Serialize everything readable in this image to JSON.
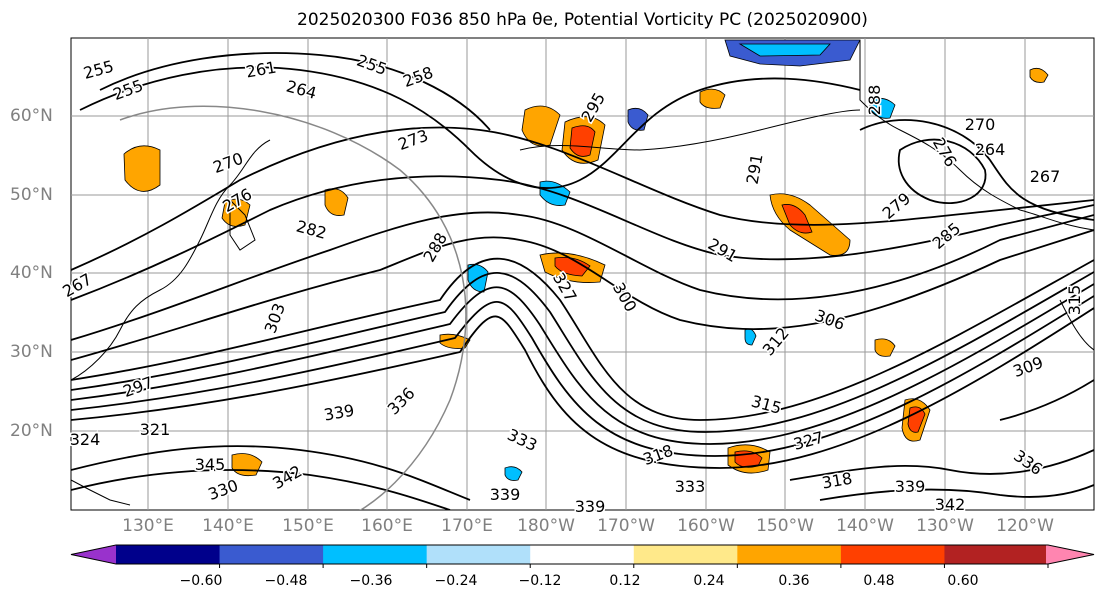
{
  "title": "2025020300 F036 850 hPa θe, Potential Vorticity PC (2025020900)",
  "lat_labels": [
    "60°N",
    "50°N",
    "40°N",
    "30°N",
    "20°N"
  ],
  "lon_labels": [
    "130°E",
    "140°E",
    "150°E",
    "160°E",
    "170°E",
    "180°W",
    "170°W",
    "160°W",
    "150°W",
    "140°W",
    "130°W",
    "120°W"
  ],
  "colorbar": {
    "ticks": [
      "−0.60",
      "−0.48",
      "−0.36",
      "−0.24",
      "−0.12",
      "0.12",
      "0.24",
      "0.36",
      "0.48",
      "0.60"
    ],
    "colors": [
      "#9932cc",
      "#00008b",
      "#3a5bd0",
      "#00bfff",
      "#b0e0fa",
      "#ffffff",
      "#ffe98a",
      "#ffa500",
      "#ff4000",
      "#b22222",
      "#ff85b0"
    ]
  },
  "contour_labels": [
    "255",
    "255",
    "261",
    "255",
    "264",
    "258",
    "273",
    "295",
    "270",
    "276",
    "282",
    "288",
    "267",
    "303",
    "297",
    "324",
    "321",
    "339",
    "336",
    "333",
    "330",
    "345",
    "342",
    "327",
    "300",
    "318",
    "312",
    "306",
    "315",
    "333",
    "339",
    "339",
    "327",
    "318",
    "339",
    "342",
    "336",
    "309",
    "315",
    "291",
    "279",
    "285",
    "264",
    "270",
    "276",
    "291",
    "288",
    "267"
  ]
}
